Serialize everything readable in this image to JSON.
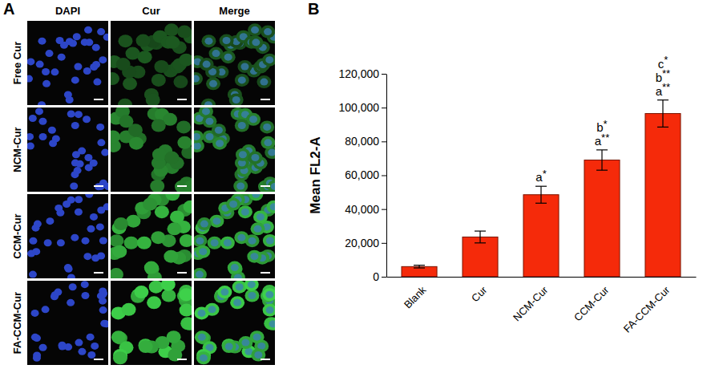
{
  "figure": {
    "panels": [
      "A",
      "B"
    ]
  },
  "micrographs": {
    "columns": [
      "DAPI",
      "Cur",
      "Merge"
    ],
    "rows": [
      "Free Cur",
      "NCM-Cur",
      "CCM-Cur",
      "FA-CCM-Cur"
    ]
  },
  "chart_data": {
    "type": "bar",
    "y_label": "Mean FL2-A",
    "categories": [
      "Blank",
      "Cur",
      "NCM-Cur",
      "CCM-Cur",
      "FA-CCM-Cur"
    ],
    "values": [
      6000,
      23500,
      48500,
      69000,
      96500
    ],
    "errors": [
      800,
      3500,
      5000,
      6000,
      8000
    ],
    "significance": [
      [],
      [],
      [
        "a*"
      ],
      [
        "b*",
        "a**"
      ],
      [
        "c*",
        "b**",
        "a**"
      ]
    ],
    "color": "#f52a0a",
    "ylim": [
      0,
      120000
    ],
    "yticks": [
      0,
      {
        "value": 20000,
        "label": "20,000"
      },
      {
        "value": 40000,
        "label": "40,000"
      },
      {
        "value": 60000,
        "label": "60,000"
      },
      {
        "value": 80000,
        "label": "80,000"
      },
      {
        "value": 100000,
        "label": "100,000"
      },
      {
        "value": 120000,
        "label": "120,000"
      }
    ],
    "grid": false
  }
}
